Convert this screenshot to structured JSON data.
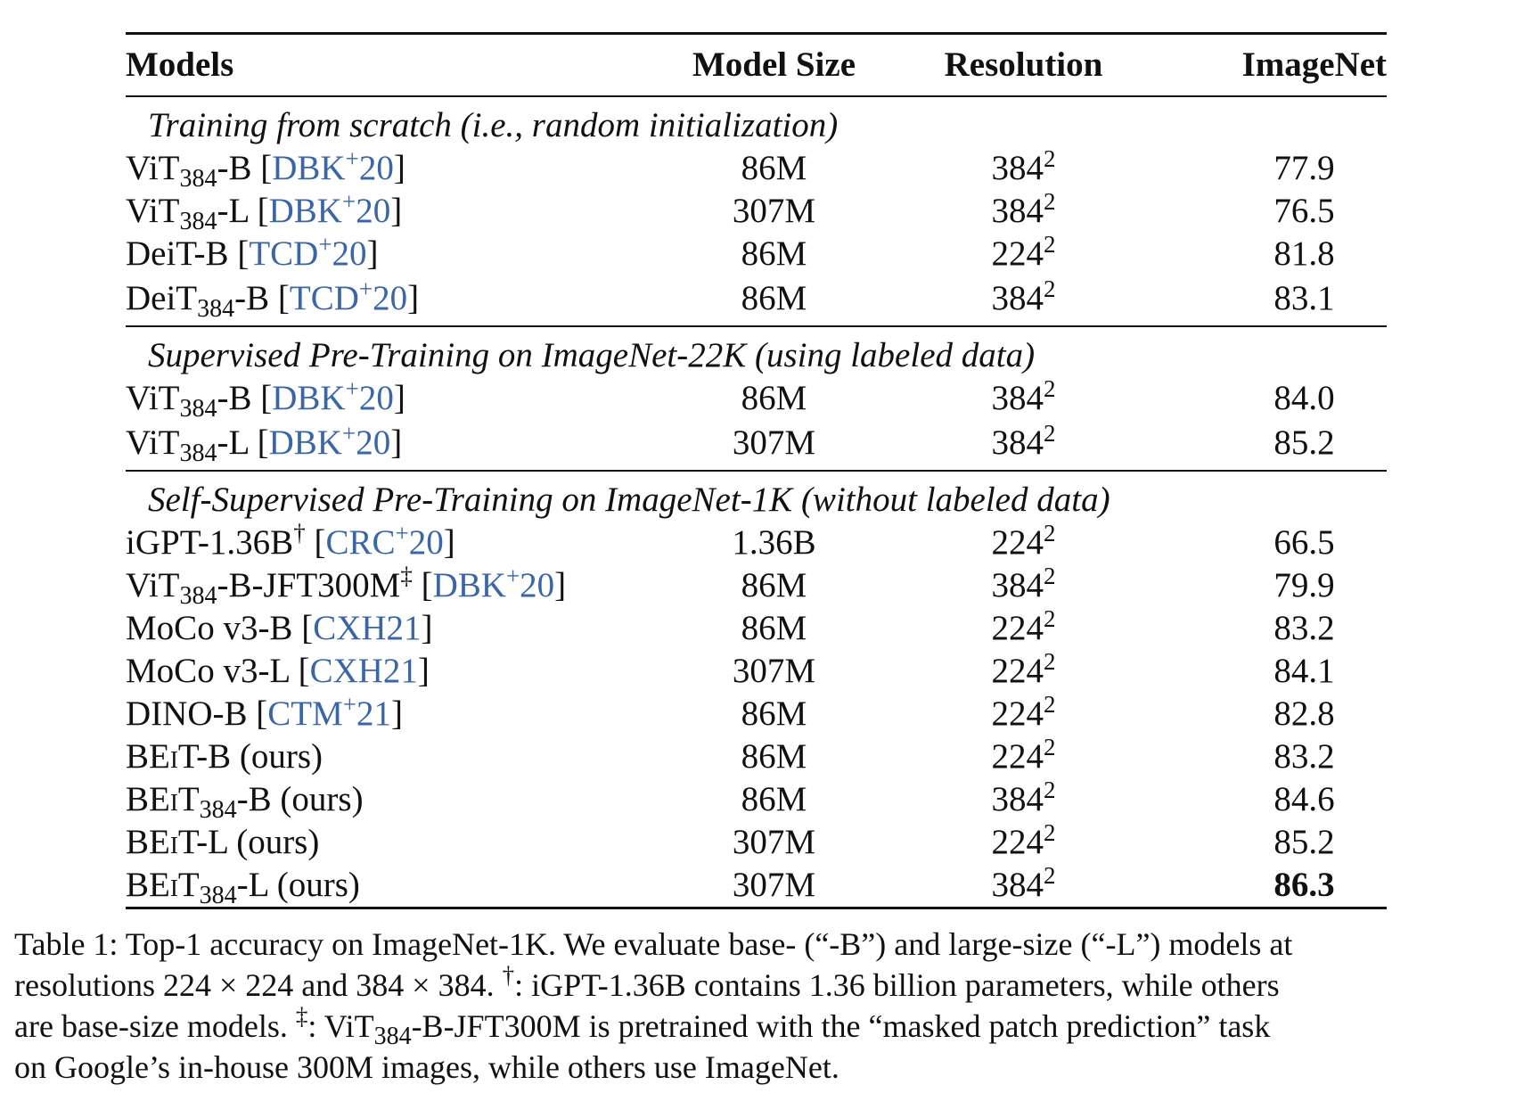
{
  "table": {
    "headers": {
      "models": "Models",
      "model_size": "Model Size",
      "resolution": "Resolution",
      "imagenet": "ImageNet"
    },
    "sections": [
      {
        "title": "Training from scratch (i.e., random initialization)",
        "rows": [
          {
            "name": "ViT",
            "sub": "384",
            "suffix": "-B",
            "cite_pre": "[",
            "cite": "DBK",
            "cite_sup": "+",
            "cite_post": "20",
            "cite_close": "]",
            "size": "86M",
            "res": "384",
            "res_exp": "2",
            "acc": "77.9"
          },
          {
            "name": "ViT",
            "sub": "384",
            "suffix": "-L",
            "cite_pre": "[",
            "cite": "DBK",
            "cite_sup": "+",
            "cite_post": "20",
            "cite_close": "]",
            "size": "307M",
            "res": "384",
            "res_exp": "2",
            "acc": "76.5"
          },
          {
            "name": "DeiT-B",
            "sub": "",
            "suffix": "",
            "cite_pre": "[",
            "cite": "TCD",
            "cite_sup": "+",
            "cite_post": "20",
            "cite_close": "]",
            "size": "86M",
            "res": "224",
            "res_exp": "2",
            "acc": "81.8"
          },
          {
            "name": "DeiT",
            "sub": "384",
            "suffix": "-B",
            "cite_pre": "[",
            "cite": "TCD",
            "cite_sup": "+",
            "cite_post": "20",
            "cite_close": "]",
            "size": "86M",
            "res": "384",
            "res_exp": "2",
            "acc": "83.1"
          }
        ]
      },
      {
        "title": "Supervised Pre-Training on ImageNet-22K (using labeled data)",
        "rows": [
          {
            "name": "ViT",
            "sub": "384",
            "suffix": "-B",
            "cite_pre": "[",
            "cite": "DBK",
            "cite_sup": "+",
            "cite_post": "20",
            "cite_close": "]",
            "size": "86M",
            "res": "384",
            "res_exp": "2",
            "acc": "84.0"
          },
          {
            "name": "ViT",
            "sub": "384",
            "suffix": "-L",
            "cite_pre": "[",
            "cite": "DBK",
            "cite_sup": "+",
            "cite_post": "20",
            "cite_close": "]",
            "size": "307M",
            "res": "384",
            "res_exp": "2",
            "acc": "85.2"
          }
        ]
      },
      {
        "title": "Self-Supervised Pre-Training on ImageNet-1K (without labeled data)",
        "rows": [
          {
            "name": "iGPT-1.36B",
            "mark": "†",
            "cite_pre": "[",
            "cite": "CRC",
            "cite_sup": "+",
            "cite_post": "20",
            "cite_close": "]",
            "size": "1.36B",
            "res": "224",
            "res_exp": "2",
            "acc": "66.5"
          },
          {
            "name": "ViT",
            "sub": "384",
            "suffix": "-B-JFT300M",
            "mark": "‡",
            "cite_pre": "[",
            "cite": "DBK",
            "cite_sup": "+",
            "cite_post": "20",
            "cite_close": "]",
            "size": "86M",
            "res": "384",
            "res_exp": "2",
            "acc": "79.9"
          },
          {
            "name": "MoCo v3-B",
            "cite_pre": "[",
            "cite": "CXH21",
            "cite_close": "]",
            "size": "86M",
            "res": "224",
            "res_exp": "2",
            "acc": "83.2"
          },
          {
            "name": "MoCo v3-L",
            "cite_pre": "[",
            "cite": "CXH21",
            "cite_close": "]",
            "size": "307M",
            "res": "224",
            "res_exp": "2",
            "acc": "84.1"
          },
          {
            "name": "DINO-B",
            "cite_pre": "[",
            "cite": "CTM",
            "cite_sup": "+",
            "cite_post": "21",
            "cite_close": "]",
            "size": "86M",
            "res": "224",
            "res_exp": "2",
            "acc": "82.8"
          },
          {
            "name_a": "BE",
            "name_sc": "i",
            "name_b": "T",
            "sub": "",
            "suffix": "-B (ours)",
            "size": "86M",
            "res": "224",
            "res_exp": "2",
            "acc": "83.2"
          },
          {
            "name_a": "BE",
            "name_sc": "i",
            "name_b": "T",
            "sub": "384",
            "suffix": "-B (ours)",
            "size": "86M",
            "res": "384",
            "res_exp": "2",
            "acc": "84.6"
          },
          {
            "name_a": "BE",
            "name_sc": "i",
            "name_b": "T",
            "sub": "",
            "suffix": "-L (ours)",
            "size": "307M",
            "res": "224",
            "res_exp": "2",
            "acc": "85.2"
          },
          {
            "name_a": "BE",
            "name_sc": "i",
            "name_b": "T",
            "sub": "384",
            "suffix": "-L (ours)",
            "size": "307M",
            "res": "384",
            "res_exp": "2",
            "acc": "86.3",
            "best": true
          }
        ]
      }
    ]
  },
  "caption": {
    "line1": "Table 1: Top-1 accuracy on ImageNet-1K. We evaluate base- (“-B”) and large-size (“-L”) models at",
    "line2_a": "resolutions 224 × 224 and 384 × 384. ",
    "line2_mark": "†",
    "line2_b": ": iGPT-1.36B contains 1.36 billion parameters, while others",
    "line3_a": "are base-size models. ",
    "line3_mark": "‡",
    "line3_b": ": ViT",
    "line3_sub": "384",
    "line3_c": "-B-JFT300M is pretrained with the “masked patch prediction” task",
    "line4": "on Google’s in-house 300M images, while others use ImageNet."
  }
}
